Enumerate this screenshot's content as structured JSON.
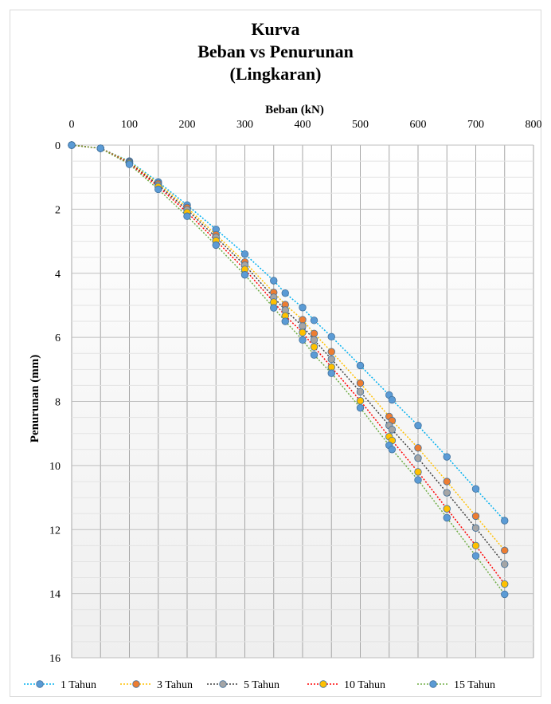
{
  "chart_data": {
    "type": "line",
    "title_lines": [
      "Kurva",
      "Beban vs Penurunan",
      "(Lingkaran)"
    ],
    "xlabel": "Beban (kN)",
    "ylabel": "Penurunan (mm)",
    "xlim": [
      0,
      800
    ],
    "ylim": [
      0,
      16
    ],
    "x_ticks": [
      0,
      100,
      200,
      300,
      400,
      500,
      600,
      700,
      800
    ],
    "y_ticks": [
      0,
      2,
      4,
      6,
      8,
      10,
      12,
      14,
      16
    ],
    "y_reversed": true,
    "x_axis_position": "top",
    "grid": true,
    "legend_position": "bottom",
    "x": [
      0,
      50,
      100,
      150,
      200,
      250,
      300,
      350,
      370,
      400,
      420,
      450,
      500,
      550,
      555,
      600,
      650,
      700,
      750
    ],
    "series": [
      {
        "name": "1 Tahun",
        "color": "#5b9bd5",
        "line_color": "#00b0f0",
        "values": [
          0,
          0.1,
          0.5,
          1.15,
          1.87,
          2.63,
          3.4,
          4.23,
          4.62,
          5.07,
          5.47,
          5.98,
          6.88,
          7.8,
          7.95,
          8.75,
          9.73,
          10.73,
          11.72
        ]
      },
      {
        "name": "3 Tahun",
        "color": "#ed7d31",
        "line_color": "#ffc000",
        "values": [
          0,
          0.1,
          0.52,
          1.2,
          1.95,
          2.8,
          3.65,
          4.6,
          4.98,
          5.45,
          5.88,
          6.45,
          7.43,
          8.47,
          8.6,
          9.45,
          10.5,
          11.58,
          12.65
        ]
      },
      {
        "name": "5 Tahun",
        "color": "#a5a5a5",
        "line_color": "#404040",
        "values": [
          0,
          0.1,
          0.55,
          1.25,
          2.02,
          2.88,
          3.75,
          4.75,
          5.15,
          5.65,
          6.08,
          6.68,
          7.7,
          8.75,
          8.88,
          9.77,
          10.85,
          11.95,
          13.08
        ]
      },
      {
        "name": "10 Tahun",
        "color": "#ffc000",
        "line_color": "#ff0000",
        "values": [
          0,
          0.1,
          0.57,
          1.3,
          2.1,
          2.98,
          3.88,
          4.9,
          5.33,
          5.85,
          6.3,
          6.93,
          7.98,
          9.1,
          9.22,
          10.2,
          11.35,
          12.5,
          13.7
        ]
      },
      {
        "name": "15 Tahun",
        "color": "#5b9bd5",
        "line_color": "#70ad47",
        "values": [
          0,
          0.1,
          0.6,
          1.38,
          2.22,
          3.12,
          4.05,
          5.08,
          5.5,
          6.08,
          6.55,
          7.12,
          8.2,
          9.37,
          9.5,
          10.45,
          11.63,
          12.82,
          14.02
        ]
      }
    ]
  }
}
